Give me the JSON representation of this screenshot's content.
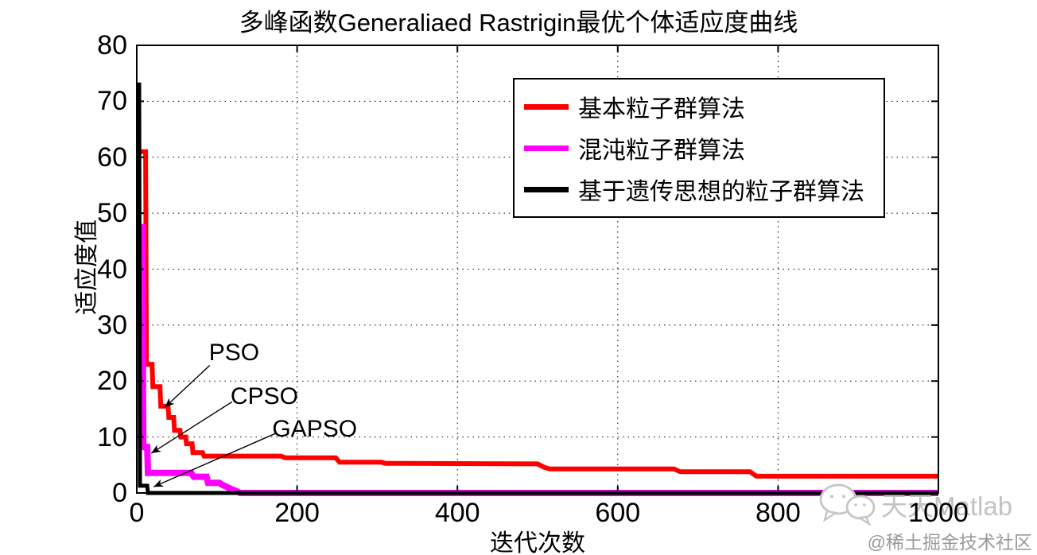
{
  "chart_data": {
    "type": "line",
    "title": "多峰函数Generaliaed Rastrigin最优个体适应度曲线",
    "xlabel": "迭代次数",
    "ylabel": "适应度值",
    "xlim": [
      0,
      1000
    ],
    "ylim": [
      0,
      80
    ],
    "xticks": [
      0,
      200,
      400,
      600,
      800,
      1000
    ],
    "yticks": [
      0,
      10,
      20,
      30,
      40,
      50,
      60,
      70,
      80
    ],
    "grid": true,
    "legend_position": "upper center-right inside plot",
    "series": [
      {
        "name": "基本粒子群算法",
        "algorithm": "PSO",
        "color": "#ff0000",
        "points": [
          [
            0,
            61
          ],
          [
            11,
            61
          ],
          [
            12,
            23
          ],
          [
            19,
            23
          ],
          [
            20,
            19
          ],
          [
            29,
            19
          ],
          [
            30,
            15.5
          ],
          [
            39,
            15.5
          ],
          [
            40,
            13.5
          ],
          [
            46,
            13.5
          ],
          [
            47,
            11.2
          ],
          [
            54,
            11.2
          ],
          [
            55,
            10
          ],
          [
            61,
            10
          ],
          [
            62,
            8.8
          ],
          [
            69,
            8.8
          ],
          [
            70,
            7.2
          ],
          [
            82,
            7.2
          ],
          [
            84,
            6.6
          ],
          [
            180,
            6.6
          ],
          [
            185,
            6.3
          ],
          [
            248,
            6.3
          ],
          [
            253,
            5.5
          ],
          [
            305,
            5.5
          ],
          [
            310,
            5.3
          ],
          [
            500,
            5.2
          ],
          [
            508,
            4.6
          ],
          [
            515,
            4.3
          ],
          [
            670,
            4.3
          ],
          [
            678,
            3.8
          ],
          [
            765,
            3.8
          ],
          [
            773,
            3.0
          ],
          [
            1000,
            3.0
          ]
        ]
      },
      {
        "name": "混沌粒子群算法",
        "algorithm": "CPSO",
        "color": "#ff00ff",
        "points": [
          [
            0,
            47.5
          ],
          [
            7,
            47.5
          ],
          [
            8,
            8.2
          ],
          [
            13,
            8.2
          ],
          [
            14,
            3.6
          ],
          [
            68,
            3.6
          ],
          [
            71,
            2.9
          ],
          [
            87,
            2.9
          ],
          [
            89,
            1.8
          ],
          [
            103,
            1.8
          ],
          [
            106,
            1.5
          ],
          [
            112,
            1.1
          ],
          [
            118,
            0.7
          ],
          [
            124,
            0.35
          ],
          [
            129,
            0
          ],
          [
            1000,
            0
          ]
        ]
      },
      {
        "name": "基于遗传思想的粒子群算法",
        "algorithm": "GAPSO",
        "color": "#000000",
        "points": [
          [
            0,
            73
          ],
          [
            3,
            73
          ],
          [
            4,
            1.3
          ],
          [
            13,
            1.3
          ],
          [
            14,
            0
          ],
          [
            1000,
            0
          ]
        ]
      }
    ],
    "annotations": [
      {
        "text": "PSO",
        "text_xy": [
          90,
          27.4
        ],
        "arrow": [
          [
            91,
            22.8
          ],
          [
            35,
            15.3
          ]
        ]
      },
      {
        "text": "CPSO",
        "text_xy": [
          117,
          19.6
        ],
        "arrow": [
          [
            119,
            16.3
          ],
          [
            18,
            7.1
          ]
        ]
      },
      {
        "text": "GAPSO",
        "text_xy": [
          169,
          13.8
        ],
        "arrow": [
          [
            174,
            10.7
          ],
          [
            21,
            1.1
          ]
        ]
      }
    ]
  },
  "watermark": {
    "brand": "天天Matlab",
    "credit": "@稀土掘金技术社区",
    "icon": "wechat-icon"
  }
}
